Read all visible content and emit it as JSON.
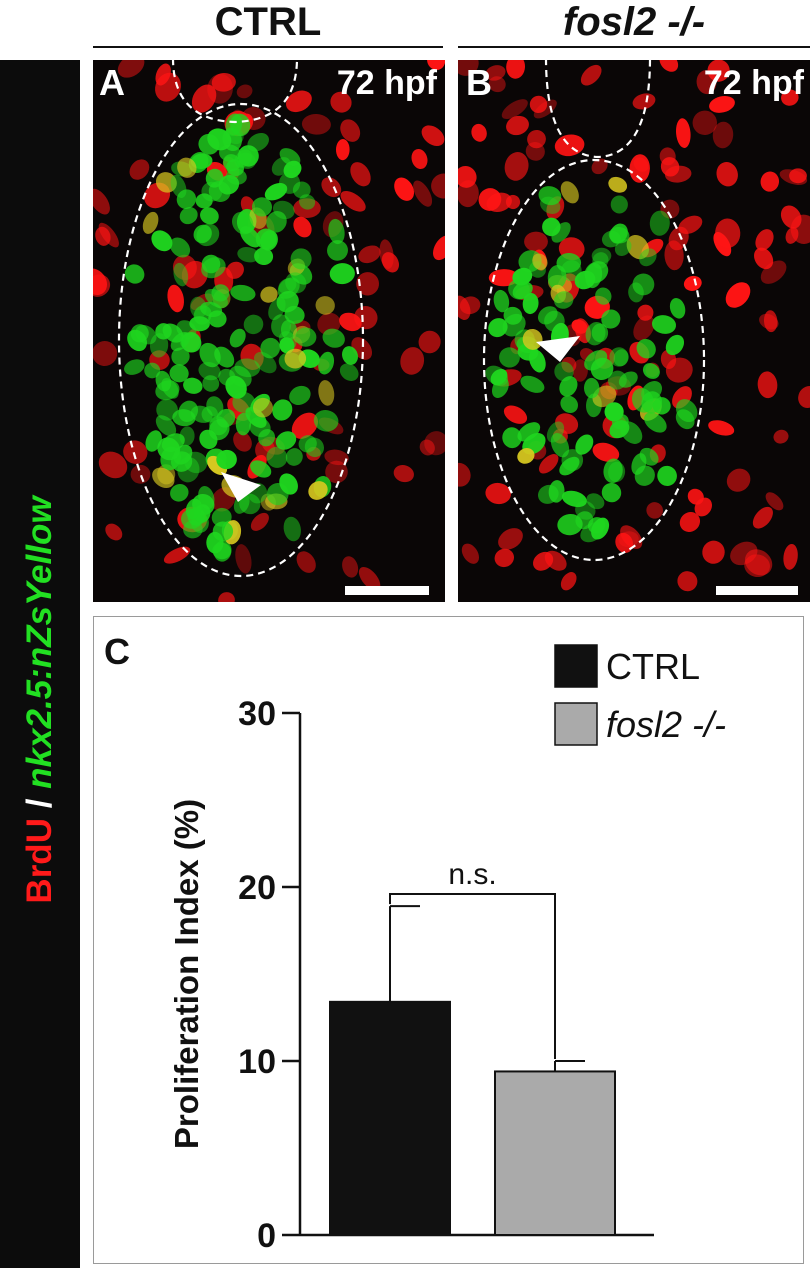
{
  "side_label": {
    "part1": "BrdU",
    "sep": " / ",
    "part2": "nkx2.5:nZsYellow",
    "colors": {
      "brdu": "#ff1a1a",
      "reporter": "#22e022"
    }
  },
  "columns": [
    {
      "title": "CTRL",
      "italic": false
    },
    {
      "title": "fosl2 -/-",
      "italic": true
    }
  ],
  "panels": [
    {
      "letter": "A",
      "stage": "72 hpf"
    },
    {
      "letter": "B",
      "stage": "72 hpf"
    }
  ],
  "chart_letter": "C",
  "chart_data": {
    "type": "bar",
    "categories": [
      "CTRL",
      "fosl2 -/-"
    ],
    "values": [
      13.4,
      9.4
    ],
    "errors": [
      5.5,
      0.6
    ],
    "colors": [
      "#111111",
      "#aaaaaa"
    ],
    "ylabel": "Proliferation Index (%)",
    "ylim": [
      0,
      30
    ],
    "yticks": [
      0,
      10,
      20,
      30
    ],
    "annotation": "n.s.",
    "legend": [
      {
        "label": "CTRL",
        "color": "#111111",
        "italic": false
      },
      {
        "label": "fosl2 -/-",
        "color": "#aaaaaa",
        "italic": true
      }
    ],
    "legend_position": "top-right",
    "grid": false
  }
}
